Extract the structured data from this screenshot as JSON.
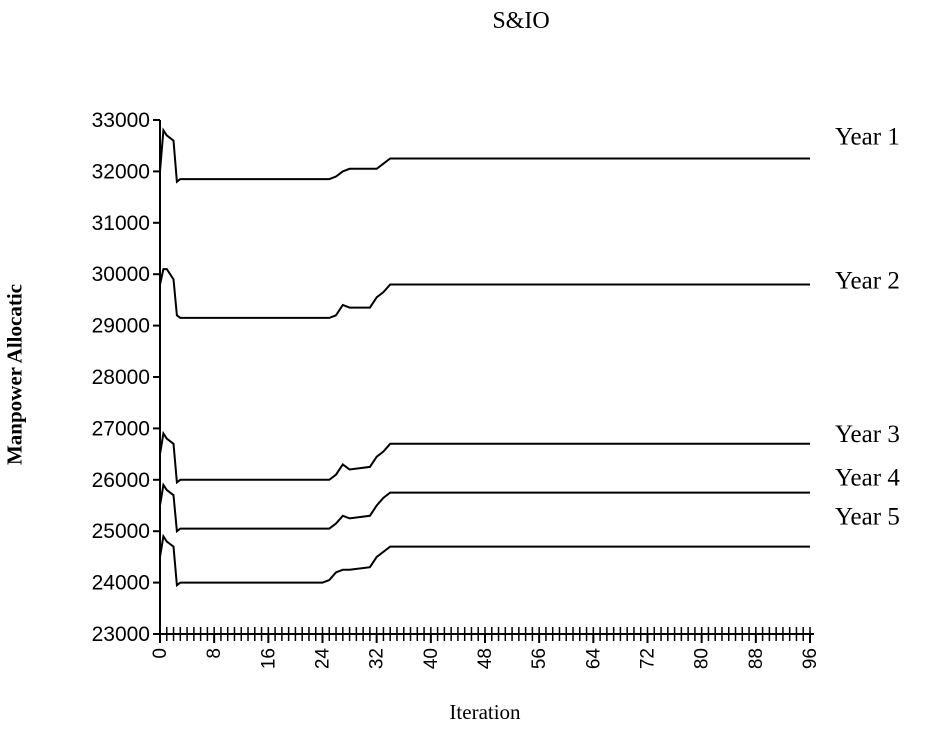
{
  "chart_data": {
    "type": "line",
    "title": "S&IO",
    "xlabel": "Iteration",
    "ylabel": "Manpower Allocatic",
    "xlim": [
      0,
      96
    ],
    "ylim": [
      23000,
      33000
    ],
    "x_ticks": [
      "0",
      "8",
      "16",
      "24",
      "32",
      "40",
      "48",
      "56",
      "64",
      "72",
      "80",
      "88",
      "96"
    ],
    "y_ticks": [
      "23000",
      "24000",
      "25000",
      "26000",
      "27000",
      "28000",
      "29000",
      "30000",
      "31000",
      "32000",
      "33000"
    ],
    "grid": false,
    "series": [
      {
        "name": "Year 1",
        "color": "#000000",
        "points": [
          [
            0,
            32000
          ],
          [
            0.5,
            32800
          ],
          [
            1,
            32700
          ],
          [
            2,
            32600
          ],
          [
            2.5,
            31800
          ],
          [
            3,
            31850
          ],
          [
            25,
            31850
          ],
          [
            26,
            31900
          ],
          [
            27,
            32000
          ],
          [
            28,
            32050
          ],
          [
            32,
            32050
          ],
          [
            33,
            32150
          ],
          [
            34,
            32250
          ],
          [
            96,
            32250
          ]
        ]
      },
      {
        "name": "Year 2",
        "color": "#000000",
        "points": [
          [
            0,
            29800
          ],
          [
            0.5,
            30100
          ],
          [
            1,
            30100
          ],
          [
            2,
            29900
          ],
          [
            2.5,
            29200
          ],
          [
            3,
            29150
          ],
          [
            25,
            29150
          ],
          [
            26,
            29200
          ],
          [
            27,
            29400
          ],
          [
            28,
            29350
          ],
          [
            31,
            29350
          ],
          [
            32,
            29550
          ],
          [
            33,
            29650
          ],
          [
            34,
            29800
          ],
          [
            96,
            29800
          ]
        ]
      },
      {
        "name": "Year 3",
        "color": "#000000",
        "points": [
          [
            0,
            26500
          ],
          [
            0.5,
            26900
          ],
          [
            1,
            26800
          ],
          [
            2,
            26700
          ],
          [
            2.5,
            25950
          ],
          [
            3,
            26000
          ],
          [
            25,
            26000
          ],
          [
            26,
            26100
          ],
          [
            27,
            26300
          ],
          [
            28,
            26200
          ],
          [
            31,
            26250
          ],
          [
            32,
            26450
          ],
          [
            33,
            26550
          ],
          [
            34,
            26700
          ],
          [
            96,
            26700
          ]
        ]
      },
      {
        "name": "Year 4",
        "color": "#000000",
        "points": [
          [
            0,
            25500
          ],
          [
            0.5,
            25900
          ],
          [
            1,
            25800
          ],
          [
            2,
            25700
          ],
          [
            2.5,
            25000
          ],
          [
            3,
            25050
          ],
          [
            25,
            25050
          ],
          [
            26,
            25150
          ],
          [
            27,
            25300
          ],
          [
            28,
            25250
          ],
          [
            31,
            25300
          ],
          [
            32,
            25500
          ],
          [
            33,
            25650
          ],
          [
            34,
            25750
          ],
          [
            96,
            25750
          ]
        ]
      },
      {
        "name": "Year 5",
        "color": "#000000",
        "points": [
          [
            0,
            24500
          ],
          [
            0.5,
            24900
          ],
          [
            1,
            24800
          ],
          [
            2,
            24700
          ],
          [
            2.5,
            23950
          ],
          [
            3,
            24000
          ],
          [
            24,
            24000
          ],
          [
            25,
            24050
          ],
          [
            26,
            24200
          ],
          [
            27,
            24250
          ],
          [
            28,
            24250
          ],
          [
            31,
            24300
          ],
          [
            32,
            24500
          ],
          [
            33,
            24600
          ],
          [
            34,
            24700
          ],
          [
            96,
            24700
          ]
        ]
      }
    ]
  }
}
